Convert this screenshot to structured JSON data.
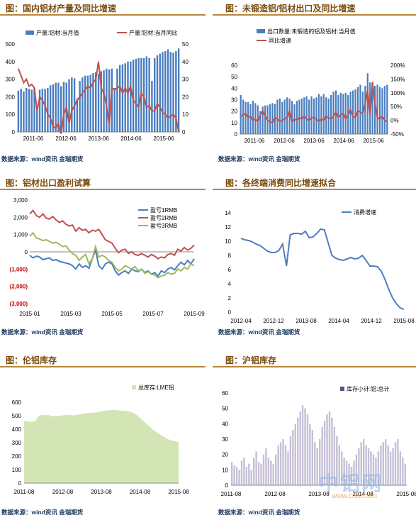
{
  "colors": {
    "blue": "#4a7ebf",
    "red": "#c0504d",
    "green": "#9bbb59",
    "greenFill": "#d3e5b4",
    "purple": "#5c4a8a",
    "title": "#7a4a0c",
    "source": "#1f3a60"
  },
  "panels": [
    {
      "title": "图：国内铝材产量及同比增速",
      "source": "数据来源：wind资讯 金瑞期货"
    },
    {
      "title": "图：未锻造铝/铝材出口及同比增速",
      "source": "数据来源：wind资讯 金瑞期货"
    },
    {
      "title": "图：铝材出口盈利试算",
      "source": "数据来源：wind资讯 金瑞期货"
    },
    {
      "title": "图：各终端消费同比增速拟合",
      "source": "数据来源：wind资讯 金瑞期货"
    },
    {
      "title": "图：伦铝库存",
      "source": "数据来源：wind资讯 金瑞期货"
    },
    {
      "title": "图：沪铝库存",
      "source": "数据来源：wind资讯 金瑞期货"
    }
  ],
  "watermark": {
    "text": "中铝网",
    "url": "www.cnal.com"
  },
  "chart_data": [
    {
      "type": "bar+line",
      "xticks": [
        "2011-06",
        "2012-06",
        "2013-06",
        "2014-06",
        "2015-06"
      ],
      "ylim": [
        0,
        500
      ],
      "yticks": [
        "0",
        "100",
        "200",
        "300",
        "400",
        "500"
      ],
      "y2lim": [
        0,
        50
      ],
      "y2ticks": [
        "0",
        "10",
        "20",
        "30",
        "40",
        "50"
      ],
      "series": [
        {
          "name": "产量:铝材:当月值",
          "axis": "left",
          "kind": "bar",
          "values": [
            235,
            245,
            230,
            250,
            245,
            240,
            250,
            130,
            240,
            245,
            245,
            250,
            265,
            270,
            280,
            280,
            260,
            285,
            280,
            300,
            310,
            305,
            190,
            290,
            310,
            320,
            320,
            325,
            335,
            340,
            330,
            345,
            350,
            360,
            355,
            360,
            250,
            360,
            380,
            385,
            390,
            400,
            400,
            410,
            415,
            420,
            420,
            420,
            430,
            420,
            290,
            420,
            435,
            445,
            455,
            460,
            470,
            455,
            450,
            460,
            475
          ]
        },
        {
          "name": "产量:铝材:当月同比",
          "axis": "right",
          "kind": "line",
          "values": [
            36,
            32,
            28,
            30,
            26,
            27,
            25,
            12,
            20,
            18,
            15,
            10,
            8,
            3,
            2,
            5,
            -1,
            10,
            14,
            5,
            12,
            15,
            18,
            20,
            22,
            24,
            26,
            25,
            28,
            30,
            40,
            25,
            22,
            15,
            4,
            25,
            24,
            25,
            26,
            22,
            25,
            22,
            26,
            18,
            16,
            14,
            22,
            20,
            14,
            15,
            12,
            12,
            16,
            14,
            11,
            10,
            8,
            9,
            10,
            8,
            0
          ]
        }
      ]
    },
    {
      "type": "bar+line",
      "xticks": [
        "2011-06",
        "2012-06",
        "2013-06",
        "2014-06",
        "2015-06"
      ],
      "ylim": [
        0,
        60
      ],
      "yticks": [
        "0",
        "10",
        "20",
        "30",
        "40",
        "50",
        "60"
      ],
      "y2lim": [
        -50,
        200
      ],
      "y2ticks": [
        "-50%",
        "0%",
        "50%",
        "100%",
        "150%",
        "200%"
      ],
      "series": [
        {
          "name": "出口数量:未锻造的铝及铝材:当月值",
          "axis": "left",
          "kind": "bar",
          "values": [
            34,
            30,
            28,
            28,
            26,
            29,
            27,
            25,
            20,
            24,
            25,
            25,
            26,
            27,
            26,
            30,
            31,
            28,
            30,
            32,
            31,
            29,
            26,
            29,
            30,
            31,
            32,
            33,
            30,
            33,
            31,
            32,
            35,
            33,
            35,
            32,
            31,
            34,
            37,
            38,
            34,
            36,
            35,
            36,
            34,
            37,
            38,
            39,
            41,
            43,
            37,
            42,
            53,
            45,
            44,
            42,
            43,
            41,
            40,
            42,
            43
          ]
        },
        {
          "name": "同比增速",
          "axis": "right",
          "kind": "line",
          "values": [
            15,
            20,
            25,
            10,
            15,
            0,
            5,
            -5,
            20,
            35,
            15,
            0,
            -5,
            -10,
            10,
            5,
            -5,
            0,
            5,
            10,
            35,
            -5,
            5,
            0,
            10,
            5,
            15,
            5,
            0,
            10,
            10,
            5,
            -5,
            5,
            0,
            15,
            10,
            5,
            15,
            30,
            10,
            20,
            25,
            5,
            20,
            40,
            15,
            10,
            35,
            30,
            25,
            60,
            110,
            20,
            140,
            60,
            10,
            5,
            15,
            0,
            -5
          ]
        }
      ]
    },
    {
      "type": "line",
      "xticks": [
        "2015-01",
        "2015-03",
        "2015-05",
        "2015-07",
        "2015-09"
      ],
      "ylim": [
        -3000,
        3000
      ],
      "yticks": [
        "3,000",
        "2,000",
        "1,000",
        "0",
        "(1,000)",
        "(2,000)",
        "(3,000)"
      ],
      "series": [
        {
          "name": "盈亏1RMB",
          "values": [
            -200,
            -350,
            -250,
            -300,
            -450,
            -400,
            -350,
            -500,
            -450,
            -550,
            -600,
            -650,
            -700,
            -800,
            -1000,
            -700,
            -900,
            -800,
            -950,
            -400,
            100,
            -800,
            -1000,
            -700,
            -600,
            -700,
            -1100,
            -1350,
            -1200,
            -1100,
            -1250,
            -1000,
            -1100,
            -1150,
            -1000,
            -1200,
            -1100,
            -1300,
            -1200,
            -1400,
            -1100,
            -1200,
            -1000,
            -900,
            -1050,
            -800,
            -600,
            -750,
            -500,
            -700,
            -400
          ]
        },
        {
          "name": "盈亏2RMB",
          "values": [
            2200,
            2400,
            2100,
            2000,
            2200,
            1950,
            1900,
            2050,
            1850,
            1700,
            1800,
            1600,
            1500,
            1550,
            1200,
            1400,
            1250,
            1300,
            1100,
            1250,
            1200,
            1300,
            1000,
            700,
            600,
            500,
            200,
            -50,
            100,
            150,
            -100,
            0,
            -150,
            -200,
            -100,
            -200,
            -300,
            -150,
            -250,
            -400,
            -300,
            -350,
            -150,
            -100,
            -200,
            150,
            50,
            250,
            100,
            200,
            400
          ]
        },
        {
          "name": "盈亏3RMB",
          "values": [
            900,
            1100,
            800,
            750,
            650,
            700,
            600,
            500,
            550,
            450,
            300,
            350,
            100,
            -100,
            -200,
            -500,
            -300,
            -150,
            -700,
            -400,
            300,
            -300,
            -200,
            -300,
            -500,
            -600,
            -900,
            -1100,
            -1000,
            -800,
            -900,
            -1000,
            -850,
            -1100,
            -1000,
            -1250,
            -1150,
            -1300,
            -1350,
            -1500,
            -1400,
            -1350,
            -1200,
            -1300,
            -1250,
            -1000,
            -1100,
            -900,
            -1000,
            -700,
            -800
          ]
        }
      ]
    },
    {
      "type": "line",
      "xticks": [
        "2012-04",
        "2012-12",
        "2013-08",
        "2014-04",
        "2014-12",
        "2015-08"
      ],
      "ylim": [
        0,
        14
      ],
      "yticks": [
        "0",
        "2",
        "4",
        "6",
        "8",
        "10",
        "12",
        "14"
      ],
      "series": [
        {
          "name": "消费增速",
          "values": [
            10.4,
            10.2,
            10.1,
            9.9,
            9.6,
            9.4,
            9.0,
            8.6,
            8.4,
            8.4,
            8.7,
            9.6,
            6.5,
            10.9,
            11.1,
            11.1,
            11.0,
            11.4,
            10.5,
            10.6,
            11.1,
            11.7,
            11.6,
            9.8,
            8.0,
            7.6,
            7.4,
            7.3,
            7.5,
            7.7,
            7.5,
            7.6,
            8.0,
            7.3,
            6.5,
            6.5,
            6.4,
            5.8,
            4.6,
            3.2,
            2.0,
            1.2,
            0.6,
            0.4
          ]
        }
      ]
    },
    {
      "type": "area",
      "xticks": [
        "2011-08",
        "2012-08",
        "2013-08",
        "2014-08",
        "2015-08"
      ],
      "ylim": [
        0,
        600
      ],
      "yticks": [
        "0",
        "100",
        "200",
        "300",
        "400",
        "500",
        "600"
      ],
      "series": [
        {
          "name": "总库存:LME铝",
          "values": [
            460,
            458,
            455,
            456,
            462,
            500,
            505,
            503,
            507,
            501,
            495,
            498,
            500,
            502,
            504,
            506,
            505,
            502,
            506,
            510,
            515,
            518,
            520,
            522,
            523,
            525,
            530,
            534,
            538,
            540,
            541,
            542,
            540,
            538,
            536,
            535,
            530,
            525,
            515,
            500,
            480,
            460,
            440,
            420,
            400,
            385,
            370,
            355,
            345,
            330,
            320,
            315,
            310,
            305
          ]
        }
      ]
    },
    {
      "type": "bar",
      "xticks": [
        "2011-08",
        "2012-08",
        "2013-08",
        "2014-08",
        "2015-08"
      ],
      "ylim": [
        0,
        60
      ],
      "yticks": [
        "0",
        "10",
        "20",
        "30",
        "40",
        "50",
        "60"
      ],
      "series": [
        {
          "name": "库存小计:铝:总计",
          "values": [
            15,
            13,
            12,
            10,
            16,
            18,
            12,
            14,
            10,
            18,
            22,
            15,
            14,
            20,
            24,
            18,
            16,
            14,
            20,
            26,
            28,
            30,
            26,
            22,
            32,
            36,
            40,
            44,
            48,
            52,
            50,
            46,
            40,
            36,
            28,
            24,
            30,
            38,
            42,
            46,
            48,
            44,
            38,
            32,
            26,
            22,
            18,
            16,
            14,
            12,
            16,
            20,
            24,
            28,
            30,
            26,
            24,
            22,
            20,
            18,
            22,
            26,
            28,
            30,
            26,
            22,
            24,
            28,
            30,
            22,
            18,
            14
          ]
        }
      ]
    }
  ]
}
